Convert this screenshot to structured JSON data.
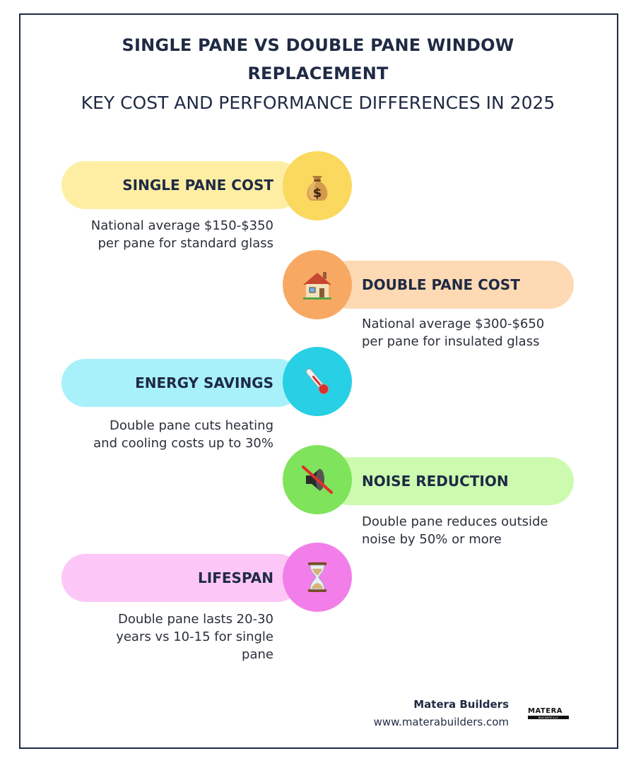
{
  "header": {
    "title_line1": "SINGLE PANE VS DOUBLE PANE WINDOW",
    "title_line2": "REPLACEMENT",
    "subtitle": "KEY COST AND PERFORMANCE DIFFERENCES IN 2025"
  },
  "items": [
    {
      "label": "SINGLE PANE COST",
      "icon": "money-bag-icon",
      "pill_color": "#fdeea4",
      "circle_color": "#fbd85e",
      "desc_lines": [
        "National average $150-$350",
        "per pane for standard glass"
      ]
    },
    {
      "label": "DOUBLE PANE COST",
      "icon": "house-icon",
      "pill_color": "#fdd9b4",
      "circle_color": "#f7a963",
      "desc_lines": [
        "National average $300-$650",
        "per pane for insulated glass"
      ]
    },
    {
      "label": "ENERGY SAVINGS",
      "icon": "thermometer-icon",
      "pill_color": "#a8f1fa",
      "circle_color": "#27d0e4",
      "desc_lines": [
        "Double pane cuts heating",
        "and cooling costs up to 30%"
      ]
    },
    {
      "label": "NOISE REDUCTION",
      "icon": "muted-speaker-icon",
      "pill_color": "#ccfbb0",
      "circle_color": "#7fe35b",
      "desc_lines": [
        "Double pane reduces outside",
        "noise by 50% or more"
      ]
    },
    {
      "label": "LIFESPAN",
      "icon": "hourglass-icon",
      "pill_color": "#fcc7f7",
      "circle_color": "#f27fe9",
      "desc_lines": [
        "Double pane lasts 20-30",
        "years vs 10-15 for single",
        "pane"
      ]
    }
  ],
  "footer": {
    "brand_name": "Matera Builders",
    "url": "www.materabuilders.com",
    "logo_text": "MATERA",
    "logo_subtext": "BUILDERS LLC"
  }
}
